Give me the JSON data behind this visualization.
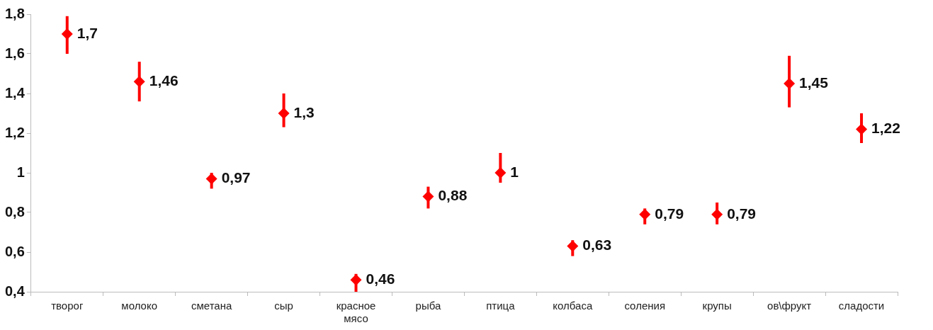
{
  "chart_data": {
    "type": "scatter",
    "categories": [
      "творог",
      "молоко",
      "сметана",
      "сыр",
      "красное мясо",
      "рыба",
      "птица",
      "колбаса",
      "соления",
      "крупы",
      "ов\\фрукт",
      "сладости"
    ],
    "values": [
      1.7,
      1.46,
      0.97,
      1.3,
      0.46,
      0.88,
      1,
      0.63,
      0.79,
      0.79,
      1.45,
      1.22
    ],
    "errors": [
      [
        1.6,
        1.79
      ],
      [
        1.36,
        1.56
      ],
      [
        0.92,
        1.0
      ],
      [
        1.23,
        1.4
      ],
      [
        0.4,
        0.49
      ],
      [
        0.82,
        0.93
      ],
      [
        0.95,
        1.1
      ],
      [
        0.58,
        0.66
      ],
      [
        0.74,
        0.82
      ],
      [
        0.74,
        0.85
      ],
      [
        1.33,
        1.59
      ],
      [
        1.15,
        1.3
      ]
    ],
    "value_labels": [
      "1,7",
      "1,46",
      "0,97",
      "1,3",
      "0,46",
      "0,88",
      "1",
      "0,63",
      "0,79",
      "0,79",
      "1,45",
      "1,22"
    ],
    "color": "#ff0000",
    "marker": "diamond",
    "grid": false,
    "legend": false,
    "ylim": [
      0.4,
      1.8
    ],
    "yticks": [
      {
        "value": 0.4,
        "label": "0,4"
      },
      {
        "value": 0.6,
        "label": "0,6"
      },
      {
        "value": 0.8,
        "label": "0,8"
      },
      1,
      {
        "value": 1.2,
        "label": "1,2"
      },
      {
        "value": 1.4,
        "label": "1,4"
      },
      {
        "value": 1.6,
        "label": "1,6"
      },
      {
        "value": 1.8,
        "label": "1,8"
      }
    ]
  }
}
